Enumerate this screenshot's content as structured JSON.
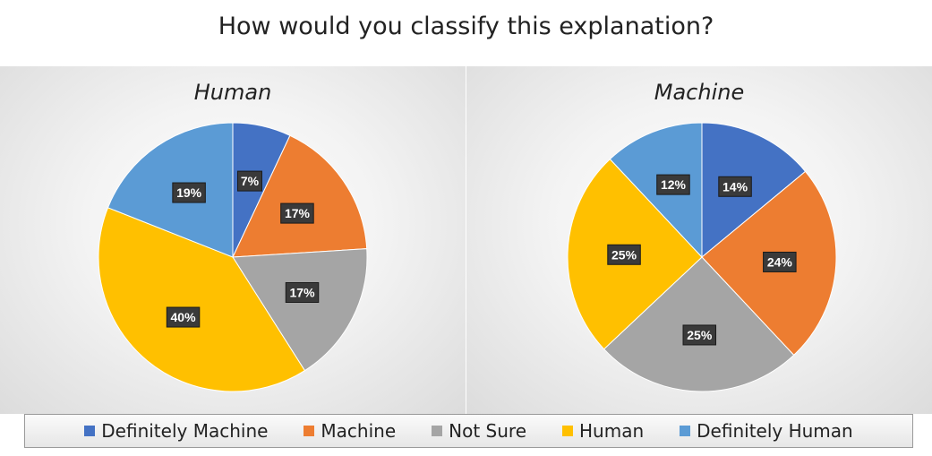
{
  "title": "How would you classify this explanation?",
  "chart_data": [
    {
      "type": "pie",
      "title": "Human",
      "categories": [
        "Definitely Machine",
        "Machine",
        "Not Sure",
        "Human",
        "Definitely Human"
      ],
      "values": [
        7,
        17,
        17,
        40,
        19
      ],
      "labels": [
        "7%",
        "17%",
        "17%",
        "40%",
        "19%"
      ]
    },
    {
      "type": "pie",
      "title": "Machine",
      "categories": [
        "Definitely Machine",
        "Machine",
        "Not Sure",
        "Human",
        "Definitely Human"
      ],
      "values": [
        14,
        24,
        25,
        25,
        12
      ],
      "labels": [
        "14%",
        "24%",
        "25%",
        "25%",
        "12%"
      ]
    }
  ],
  "legend": [
    {
      "label": "Definitely Machine",
      "color": "#4472C4"
    },
    {
      "label": "Machine",
      "color": "#ED7D31"
    },
    {
      "label": "Not Sure",
      "color": "#A5A5A5"
    },
    {
      "label": "Human",
      "color": "#FFC000"
    },
    {
      "label": "Definitely Human",
      "color": "#5B9BD5"
    }
  ]
}
